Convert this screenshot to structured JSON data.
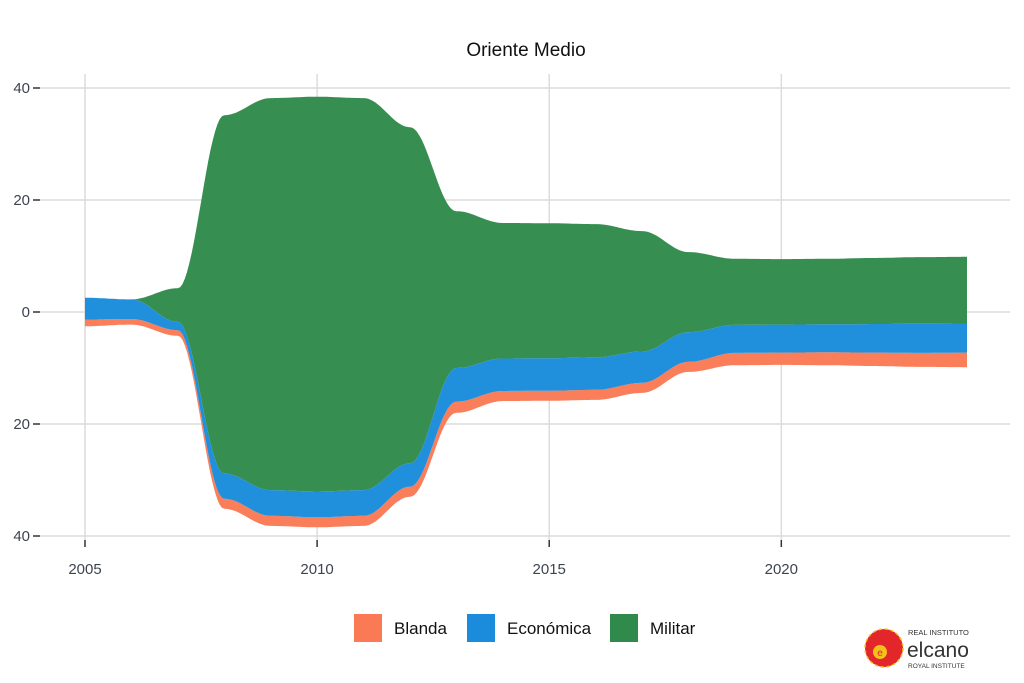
{
  "chart_data": {
    "type": "area",
    "subtype": "streamgraph",
    "title": "Oriente Medio",
    "xlabel": "",
    "ylabel": "",
    "x": [
      2005,
      2006,
      2007,
      2008,
      2009,
      2010,
      2011,
      2012,
      2013,
      2014,
      2015,
      2016,
      2017,
      2018,
      2019,
      2020,
      2021,
      2022,
      2023,
      2024
    ],
    "xlim": [
      2005,
      2024
    ],
    "ylim": [
      -40,
      40
    ],
    "x_ticks": [
      "2005",
      "2010",
      "2015",
      "2020"
    ],
    "x_tick_values": [
      2005,
      2010,
      2015,
      2020
    ],
    "y_ticks": [
      "40",
      "20",
      "0",
      "20",
      "40"
    ],
    "y_tick_values": [
      40,
      20,
      0,
      -20,
      -40
    ],
    "grid": true,
    "legend_position": "bottom",
    "series": [
      {
        "name": "Blanda",
        "color": "#FA7A55",
        "values": [
          1.2,
          1.0,
          1.0,
          1.8,
          1.8,
          1.8,
          1.8,
          1.8,
          2.0,
          1.8,
          1.8,
          1.8,
          1.8,
          1.8,
          2.2,
          2.2,
          2.3,
          2.4,
          2.5,
          2.6
        ]
      },
      {
        "name": "Económica",
        "color": "#1A8CDB",
        "values": [
          3.9,
          3.5,
          1.5,
          4.5,
          4.6,
          4.6,
          4.6,
          4.2,
          6.0,
          5.8,
          5.8,
          5.8,
          5.6,
          5.3,
          5.0,
          5.0,
          5.0,
          5.1,
          5.2,
          5.2
        ]
      },
      {
        "name": "Militar",
        "color": "#2F8A4B",
        "values": [
          0,
          0,
          6,
          64,
          70,
          70.5,
          70,
          60,
          28,
          24.2,
          24.1,
          23.8,
          21.5,
          14.3,
          11.8,
          11.7,
          11.7,
          11.8,
          11.9,
          11.9
        ]
      }
    ]
  },
  "logo": {
    "line1": "REAL INSTITUTO",
    "line2": "elcano",
    "line3": "ROYAL INSTITUTE"
  }
}
